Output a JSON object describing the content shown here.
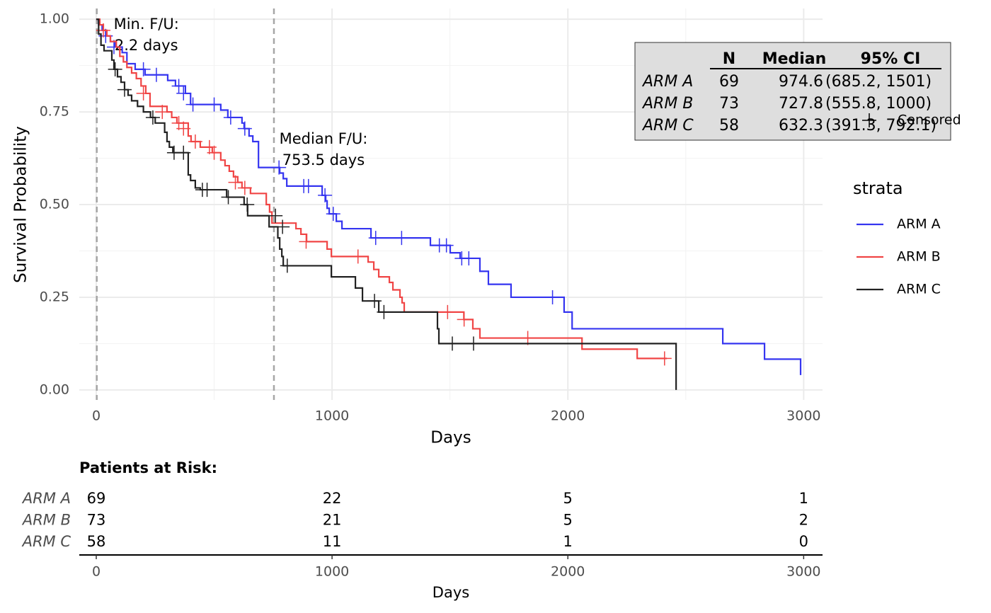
{
  "chart_data": [
    {
      "type": "km",
      "xlabel": "Days",
      "ylabel": "Survival Probability",
      "xlim": [
        -72,
        3080
      ],
      "ylim": [
        -0.027,
        1.029
      ],
      "xticks": [
        0,
        1000,
        2000,
        3000
      ],
      "yticks": [
        {
          "value": 0,
          "label": "0.00"
        },
        {
          "value": 0.25,
          "label": "0.25"
        },
        {
          "value": 0.5,
          "label": "0.50"
        },
        {
          "value": 0.75,
          "label": "0.75"
        },
        {
          "value": 1,
          "label": "1.00"
        }
      ],
      "xminor": [
        500,
        1500,
        2500
      ],
      "yminor": [
        0.125,
        0.375,
        0.625,
        0.875
      ],
      "grid": true,
      "legend_title": "strata",
      "censor_label": "Censored",
      "series": [
        {
          "name": "ARM A",
          "color": "#3535f0",
          "x": [
            0,
            10,
            25,
            40,
            60,
            80,
            110,
            130,
            165,
            207,
            303,
            336,
            378,
            400,
            528,
            558,
            618,
            627,
            648,
            664,
            688,
            778,
            793,
            808,
            958,
            973,
            979,
            988,
            1018,
            1042,
            1165,
            1417,
            1501,
            1543,
            1627,
            1663,
            1759,
            1984,
            2018,
            2657,
            2834,
            2987
          ],
          "y": [
            1,
            0.985,
            0.97,
            0.955,
            0.94,
            0.925,
            0.91,
            0.88,
            0.865,
            0.85,
            0.835,
            0.82,
            0.8,
            0.77,
            0.755,
            0.735,
            0.72,
            0.705,
            0.685,
            0.67,
            0.6,
            0.585,
            0.57,
            0.55,
            0.525,
            0.51,
            0.49,
            0.475,
            0.455,
            0.435,
            0.41,
            0.39,
            0.37,
            0.355,
            0.32,
            0.285,
            0.25,
            0.21,
            0.165,
            0.125,
            0.083,
            0.04
          ],
          "censor_x": [
            40,
            75,
            200,
            255,
            350,
            370,
            410,
            500,
            570,
            630,
            775,
            880,
            900,
            970,
            1005,
            1185,
            1295,
            1455,
            1485,
            1550,
            1580,
            1935
          ],
          "censor_y": [
            0.955,
            0.925,
            0.865,
            0.85,
            0.82,
            0.8,
            0.77,
            0.77,
            0.735,
            0.705,
            0.6,
            0.55,
            0.55,
            0.525,
            0.475,
            0.41,
            0.41,
            0.39,
            0.39,
            0.355,
            0.355,
            0.25
          ]
        },
        {
          "name": "ARM B",
          "color": "#f04545",
          "x": [
            0,
            15,
            30,
            45,
            60,
            85,
            100,
            115,
            130,
            150,
            170,
            190,
            210,
            228,
            300,
            320,
            342,
            390,
            402,
            441,
            492,
            528,
            546,
            564,
            582,
            600,
            618,
            654,
            721,
            735,
            745,
            847,
            868,
            892,
            979,
            997,
            1153,
            1177,
            1198,
            1243,
            1258,
            1288,
            1297,
            1306,
            1559,
            1597,
            1627,
            2060,
            2294,
            2420
          ],
          "y": [
            1,
            0.985,
            0.97,
            0.955,
            0.94,
            0.925,
            0.9,
            0.885,
            0.87,
            0.855,
            0.84,
            0.82,
            0.8,
            0.765,
            0.75,
            0.735,
            0.72,
            0.685,
            0.67,
            0.655,
            0.64,
            0.62,
            0.605,
            0.59,
            0.575,
            0.56,
            0.545,
            0.53,
            0.5,
            0.48,
            0.45,
            0.435,
            0.42,
            0.4,
            0.38,
            0.36,
            0.345,
            0.325,
            0.305,
            0.29,
            0.27,
            0.25,
            0.235,
            0.21,
            0.19,
            0.165,
            0.14,
            0.11,
            0.085,
            0.085
          ],
          "censor_x": [
            30,
            200,
            280,
            350,
            370,
            420,
            480,
            500,
            590,
            630,
            890,
            1110,
            1490,
            1560,
            1830,
            2410
          ],
          "censor_y": [
            0.97,
            0.8,
            0.75,
            0.72,
            0.705,
            0.67,
            0.655,
            0.64,
            0.56,
            0.545,
            0.4,
            0.36,
            0.21,
            0.19,
            0.14,
            0.085
          ]
        },
        {
          "name": "ARM C",
          "color": "#222222",
          "x": [
            0,
            10,
            20,
            33,
            66,
            75,
            90,
            105,
            120,
            135,
            150,
            175,
            200,
            230,
            250,
            290,
            300,
            310,
            325,
            390,
            400,
            420,
            441,
            553,
            627,
            642,
            733,
            770,
            778,
            787,
            793,
            997,
            1099,
            1129,
            1198,
            1447,
            1453,
            2459
          ],
          "y": [
            1,
            0.96,
            0.93,
            0.915,
            0.89,
            0.865,
            0.845,
            0.83,
            0.81,
            0.795,
            0.78,
            0.765,
            0.75,
            0.735,
            0.72,
            0.695,
            0.67,
            0.655,
            0.64,
            0.58,
            0.565,
            0.545,
            0.54,
            0.52,
            0.5,
            0.47,
            0.44,
            0.41,
            0.38,
            0.36,
            0.335,
            0.305,
            0.275,
            0.24,
            0.21,
            0.165,
            0.125,
            0
          ],
          "censor_x": [
            80,
            120,
            240,
            330,
            370,
            450,
            470,
            560,
            640,
            760,
            790,
            810,
            1180,
            1220,
            1510,
            1600
          ],
          "censor_y": [
            0.865,
            0.81,
            0.735,
            0.64,
            0.64,
            0.54,
            0.54,
            0.52,
            0.5,
            0.47,
            0.44,
            0.335,
            0.24,
            0.21,
            0.125,
            0.125
          ]
        }
      ],
      "annotations": [
        {
          "x": 2.2,
          "text": [
            "Min. F/U:",
            "2.2 days"
          ]
        },
        {
          "x": 753.5,
          "text": [
            "Median F/U:",
            "753.5 days"
          ]
        }
      ],
      "summary_table": {
        "headers": [
          "N",
          "Median",
          "95% CI"
        ],
        "rows": [
          {
            "label": "ARM A",
            "n": 69,
            "median": 974.6,
            "ci": "(685.2, 1501)"
          },
          {
            "label": "ARM B",
            "n": 73,
            "median": 727.8,
            "ci": "(555.8, 1000)"
          },
          {
            "label": "ARM C",
            "n": 58,
            "median": 632.3,
            "ci": "(391.3, 792.1)"
          }
        ]
      }
    },
    {
      "type": "risk-table",
      "title": "Patients at Risk:",
      "xlabel": "Days",
      "xlim": [
        -72,
        3080
      ],
      "xticks": [
        0,
        1000,
        2000,
        3000
      ],
      "rows": [
        {
          "name": "ARM A",
          "values": [
            69,
            22,
            5,
            1
          ]
        },
        {
          "name": "ARM B",
          "values": [
            73,
            21,
            5,
            2
          ]
        },
        {
          "name": "ARM C",
          "values": [
            58,
            11,
            1,
            0
          ]
        }
      ]
    }
  ]
}
